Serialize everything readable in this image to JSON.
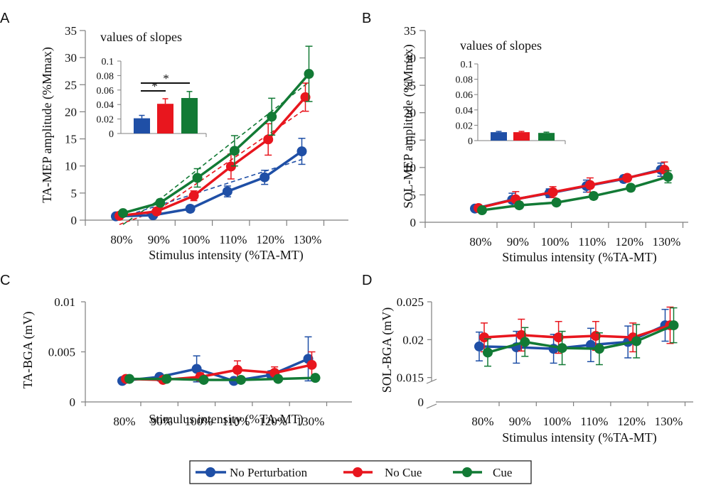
{
  "colors": {
    "No Perturbation": "#1f4fa6",
    "No Cue": "#e8161e",
    "Cue": "#127a35",
    "axis": "#7f7f7f"
  },
  "legend": {
    "items": [
      "No Perturbation",
      "No Cue",
      "Cue"
    ]
  },
  "chart_data": [
    {
      "panel": "A",
      "type": "line",
      "xlabel": "Stimulus intensity (%TA-MT)",
      "ylabel": "TA-MEP amplitude (%Mmax)",
      "categories": [
        "80%",
        "90%",
        "100%",
        "110%",
        "120%",
        "130%"
      ],
      "ylim": [
        0,
        35
      ],
      "yticks": [
        "0",
        "5",
        "10",
        "15",
        "20",
        "25",
        "30",
        "35"
      ],
      "series": [
        {
          "name": "No Perturbation",
          "values": [
            0.7,
            0.9,
            2.1,
            5.3,
            7.9,
            12.7
          ],
          "err": [
            0.3,
            0.4,
            0.6,
            1.0,
            1.3,
            2.4
          ],
          "fit": [
            0.2,
            2.4,
            4.6,
            6.8,
            9.0,
            11.2
          ]
        },
        {
          "name": "No Cue",
          "values": [
            0.8,
            1.6,
            4.5,
            9.9,
            14.9,
            22.7
          ],
          "err": [
            0.3,
            0.5,
            0.9,
            2.3,
            2.9,
            2.6
          ],
          "fit": [
            -3.0,
            1.7,
            6.4,
            11.1,
            15.8,
            20.5
          ]
        },
        {
          "name": "Cue",
          "values": [
            1.3,
            3.2,
            7.8,
            12.8,
            19.1,
            27.0
          ],
          "err": [
            0.4,
            0.6,
            1.7,
            2.8,
            3.4,
            5.1
          ],
          "fit": [
            -1.5,
            3.9,
            9.3,
            14.7,
            20.1,
            25.5
          ]
        }
      ],
      "inset": {
        "title": "values of slopes",
        "ylim": [
          0,
          0.1
        ],
        "yticks": [
          "0",
          "0.02",
          "0.04",
          "0.06",
          "0.08",
          "0.1"
        ],
        "bars": [
          {
            "name": "No Perturbation",
            "value": 0.021,
            "err": 0.004
          },
          {
            "name": "No Cue",
            "value": 0.041,
            "err": 0.007
          },
          {
            "name": "Cue",
            "value": 0.049,
            "err": 0.009
          }
        ],
        "significance": [
          "*",
          "*"
        ]
      }
    },
    {
      "panel": "B",
      "type": "line",
      "xlabel": "Stimulus intensity (%TA-MT)",
      "ylabel": "SOL-MEP amplitude (%Mmax)",
      "categories": [
        "80%",
        "90%",
        "100%",
        "110%",
        "120%",
        "130%"
      ],
      "ylim": [
        0,
        35
      ],
      "yticks": [
        "0",
        "5",
        "10",
        "15",
        "20",
        "25",
        "30",
        "35"
      ],
      "series": [
        {
          "name": "No Perturbation",
          "values": [
            2.5,
            4.1,
            5.3,
            6.6,
            7.9,
            9.6
          ],
          "err": [
            0.4,
            1.2,
            0.8,
            1.1,
            0.6,
            1.2
          ]
        },
        {
          "name": "No Cue",
          "values": [
            2.6,
            4.2,
            5.5,
            6.8,
            8.1,
            9.6
          ],
          "err": [
            0.3,
            1.4,
            1.0,
            1.3,
            0.6,
            1.4
          ]
        },
        {
          "name": "Cue",
          "values": [
            2.2,
            3.1,
            3.6,
            4.8,
            6.3,
            8.3
          ],
          "err": [
            0.3,
            0.6,
            0.5,
            0.6,
            0.6,
            1.1
          ]
        }
      ],
      "inset": {
        "title": "values of slopes",
        "ylim": [
          0,
          0.1
        ],
        "yticks": [
          "0",
          "0.02",
          "0.04",
          "0.06",
          "0.08",
          "0.1"
        ],
        "bars": [
          {
            "name": "No Perturbation",
            "value": 0.011,
            "err": 0.001
          },
          {
            "name": "No Cue",
            "value": 0.011,
            "err": 0.001
          },
          {
            "name": "Cue",
            "value": 0.01,
            "err": 0.001
          }
        ]
      }
    },
    {
      "panel": "C",
      "type": "line",
      "xlabel": "Stimulus intensity (%TA-MT)",
      "ylabel": "TA-BGA (mV)",
      "categories": [
        "80%",
        "90%",
        "100%",
        "110%",
        "120%",
        "130%"
      ],
      "ylim": [
        0,
        0.01
      ],
      "yticks": [
        "0",
        "0.005",
        "0.01"
      ],
      "series": [
        {
          "name": "No Perturbation",
          "values": [
            0.0021,
            0.0025,
            0.0033,
            0.0021,
            0.0027,
            0.0043
          ],
          "err": [
            0.0001,
            0.0002,
            0.0013,
            0.0002,
            0.0004,
            0.0022
          ]
        },
        {
          "name": "No Cue",
          "values": [
            0.0023,
            0.0022,
            0.0025,
            0.0032,
            0.0029,
            0.0037
          ],
          "err": [
            0.0001,
            0.0002,
            0.0004,
            0.0009,
            0.0006,
            0.0013
          ]
        },
        {
          "name": "Cue",
          "values": [
            0.0023,
            0.0023,
            0.0022,
            0.0022,
            0.0023,
            0.0024
          ],
          "err": [
            0.0001,
            0.0001,
            0.0001,
            0.0001,
            0.0001,
            0.0001
          ]
        }
      ]
    },
    {
      "panel": "D",
      "type": "line",
      "xlabel": "Stimulus intensity (%TA-MT)",
      "ylabel": "SOL-BGA (mV)",
      "categories": [
        "80%",
        "90%",
        "100%",
        "110%",
        "120%",
        "130%"
      ],
      "ylim": [
        0,
        0.025
      ],
      "yticks": [
        "0",
        "0.015",
        "0.02",
        "0.025"
      ],
      "axis_break": true,
      "series": [
        {
          "name": "No Perturbation",
          "values": [
            0.0191,
            0.019,
            0.0188,
            0.0193,
            0.0197,
            0.0219
          ],
          "err": [
            0.0019,
            0.0021,
            0.0019,
            0.0022,
            0.0021,
            0.0021
          ]
        },
        {
          "name": "No Cue",
          "values": [
            0.0203,
            0.0206,
            0.0203,
            0.0205,
            0.0203,
            0.0219
          ],
          "err": [
            0.0019,
            0.0021,
            0.0021,
            0.0019,
            0.0019,
            0.0024
          ]
        },
        {
          "name": "Cue",
          "values": [
            0.0183,
            0.0197,
            0.0189,
            0.0188,
            0.0198,
            0.0219
          ],
          "err": [
            0.0018,
            0.0019,
            0.0022,
            0.0021,
            0.0022,
            0.0023
          ]
        }
      ]
    }
  ]
}
